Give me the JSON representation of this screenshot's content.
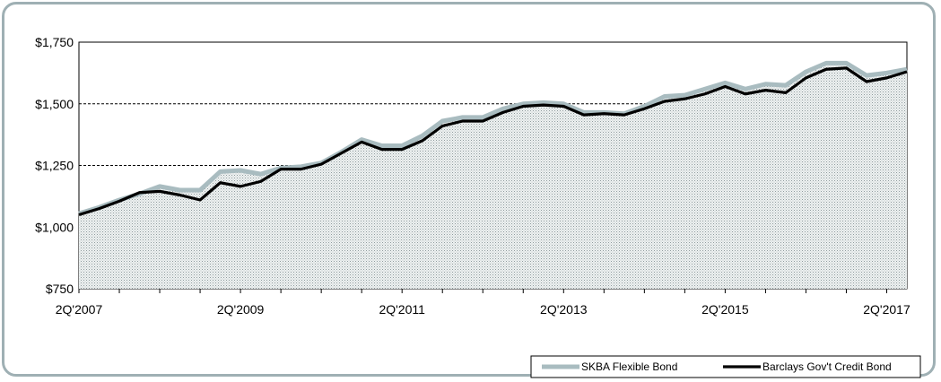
{
  "chart_data": {
    "type": "area",
    "title": "",
    "xlabel": "",
    "ylabel": "",
    "ylim": [
      750,
      1750
    ],
    "y_ticks": [
      "$750",
      "$1,000",
      "$1,250",
      "$1,500",
      "$1,750"
    ],
    "y_tick_values": [
      750,
      1000,
      1250,
      1500,
      1750
    ],
    "x_ticks": [
      "2Q'2007",
      "2Q'2009",
      "2Q'2011",
      "2Q'2013",
      "2Q'2015",
      "2Q'2017"
    ],
    "x_tick_values": [
      0,
      8,
      16,
      24,
      32,
      40
    ],
    "grid": "horizontal dashed",
    "legend_position": "bottom-right",
    "series": [
      {
        "name": "SKBA Flexible Bond",
        "style": "area",
        "color": "#a9bcc0",
        "values": [
          1055,
          1080,
          1110,
          1135,
          1165,
          1150,
          1150,
          1225,
          1230,
          1215,
          1240,
          1245,
          1260,
          1305,
          1355,
          1330,
          1330,
          1370,
          1430,
          1445,
          1445,
          1480,
          1500,
          1505,
          1500,
          1465,
          1465,
          1460,
          1490,
          1530,
          1535,
          1560,
          1585,
          1560,
          1580,
          1575,
          1630,
          1665,
          1665,
          1615,
          1625,
          1640
        ]
      },
      {
        "name": "Barclays Gov't Credit Bond",
        "style": "line",
        "color": "#000000",
        "values": [
          1050,
          1075,
          1105,
          1140,
          1145,
          1130,
          1110,
          1180,
          1165,
          1185,
          1235,
          1235,
          1255,
          1300,
          1345,
          1315,
          1315,
          1350,
          1410,
          1430,
          1430,
          1465,
          1490,
          1495,
          1490,
          1455,
          1460,
          1455,
          1480,
          1510,
          1520,
          1540,
          1570,
          1540,
          1555,
          1545,
          1605,
          1640,
          1645,
          1590,
          1605,
          1630
        ]
      }
    ]
  }
}
